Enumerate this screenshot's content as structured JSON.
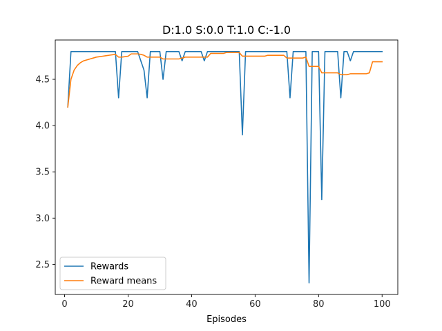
{
  "chart_data": {
    "type": "line",
    "title": "D:1.0 S:0.0 T:1.0 C:-1.0",
    "xlabel": "Episodes",
    "ylabel": "",
    "xlim": [
      -2.95,
      104.95
    ],
    "ylim": [
      2.175,
      4.925
    ],
    "xticks": [
      0,
      20,
      40,
      60,
      80,
      100
    ],
    "yticks": [
      2.5,
      3.0,
      3.5,
      4.0,
      4.5
    ],
    "xtick_labels": [
      "0",
      "20",
      "40",
      "60",
      "80",
      "100"
    ],
    "ytick_labels": [
      "2.5",
      "3.0",
      "3.5",
      "4.0",
      "4.5"
    ],
    "grid": false,
    "legend_position": "lower-left",
    "x": [
      1,
      2,
      3,
      4,
      5,
      6,
      7,
      8,
      9,
      10,
      11,
      12,
      13,
      14,
      15,
      16,
      17,
      18,
      19,
      20,
      21,
      22,
      23,
      24,
      25,
      26,
      27,
      28,
      29,
      30,
      31,
      32,
      33,
      34,
      35,
      36,
      37,
      38,
      39,
      40,
      41,
      42,
      43,
      44,
      45,
      46,
      47,
      48,
      49,
      50,
      51,
      52,
      53,
      54,
      55,
      56,
      57,
      58,
      59,
      60,
      61,
      62,
      63,
      64,
      65,
      66,
      67,
      68,
      69,
      70,
      71,
      72,
      73,
      74,
      75,
      76,
      77,
      78,
      79,
      80,
      81,
      82,
      83,
      84,
      85,
      86,
      87,
      88,
      89,
      90,
      91,
      92,
      93,
      94,
      95,
      96,
      97,
      98,
      99,
      100
    ],
    "series": [
      {
        "name": "Rewards",
        "color": "#1f77b4",
        "values": [
          4.2,
          4.8,
          4.8,
          4.8,
          4.8,
          4.8,
          4.8,
          4.8,
          4.8,
          4.8,
          4.8,
          4.8,
          4.8,
          4.8,
          4.8,
          4.8,
          4.3,
          4.8,
          4.8,
          4.8,
          4.8,
          4.8,
          4.8,
          4.7,
          4.6,
          4.3,
          4.8,
          4.8,
          4.8,
          4.8,
          4.5,
          4.8,
          4.8,
          4.8,
          4.8,
          4.8,
          4.7,
          4.8,
          4.8,
          4.8,
          4.8,
          4.8,
          4.8,
          4.7,
          4.8,
          4.8,
          4.8,
          4.8,
          4.8,
          4.8,
          4.8,
          4.8,
          4.8,
          4.8,
          4.8,
          3.9,
          4.8,
          4.8,
          4.8,
          4.8,
          4.8,
          4.8,
          4.8,
          4.8,
          4.8,
          4.8,
          4.8,
          4.8,
          4.8,
          4.8,
          4.3,
          4.8,
          4.8,
          4.8,
          4.8,
          4.8,
          2.3,
          4.8,
          4.8,
          4.8,
          3.2,
          4.8,
          4.8,
          4.8,
          4.8,
          4.8,
          4.3,
          4.8,
          4.8,
          4.7,
          4.8,
          4.8,
          4.8,
          4.8,
          4.8,
          4.8,
          4.8,
          4.8,
          4.8,
          4.8
        ]
      },
      {
        "name": "Reward means",
        "color": "#ff7f0e",
        "values": [
          4.2,
          4.5,
          4.6,
          4.65,
          4.68,
          4.7,
          4.71,
          4.72,
          4.73,
          4.74,
          4.745,
          4.75,
          4.755,
          4.76,
          4.765,
          4.77,
          4.74,
          4.74,
          4.745,
          4.75,
          4.775,
          4.775,
          4.775,
          4.77,
          4.76,
          4.74,
          4.74,
          4.74,
          4.74,
          4.74,
          4.72,
          4.72,
          4.72,
          4.72,
          4.72,
          4.72,
          4.73,
          4.74,
          4.74,
          4.74,
          4.74,
          4.74,
          4.74,
          4.74,
          4.74,
          4.78,
          4.78,
          4.78,
          4.78,
          4.78,
          4.79,
          4.79,
          4.79,
          4.79,
          4.79,
          4.75,
          4.75,
          4.75,
          4.75,
          4.75,
          4.75,
          4.75,
          4.75,
          4.76,
          4.76,
          4.76,
          4.76,
          4.76,
          4.76,
          4.73,
          4.73,
          4.73,
          4.73,
          4.73,
          4.73,
          4.74,
          4.64,
          4.64,
          4.64,
          4.64,
          4.57,
          4.57,
          4.57,
          4.57,
          4.57,
          4.57,
          4.55,
          4.55,
          4.55,
          4.56,
          4.56,
          4.56,
          4.56,
          4.56,
          4.56,
          4.57,
          4.69,
          4.69,
          4.69,
          4.69
        ]
      }
    ]
  }
}
